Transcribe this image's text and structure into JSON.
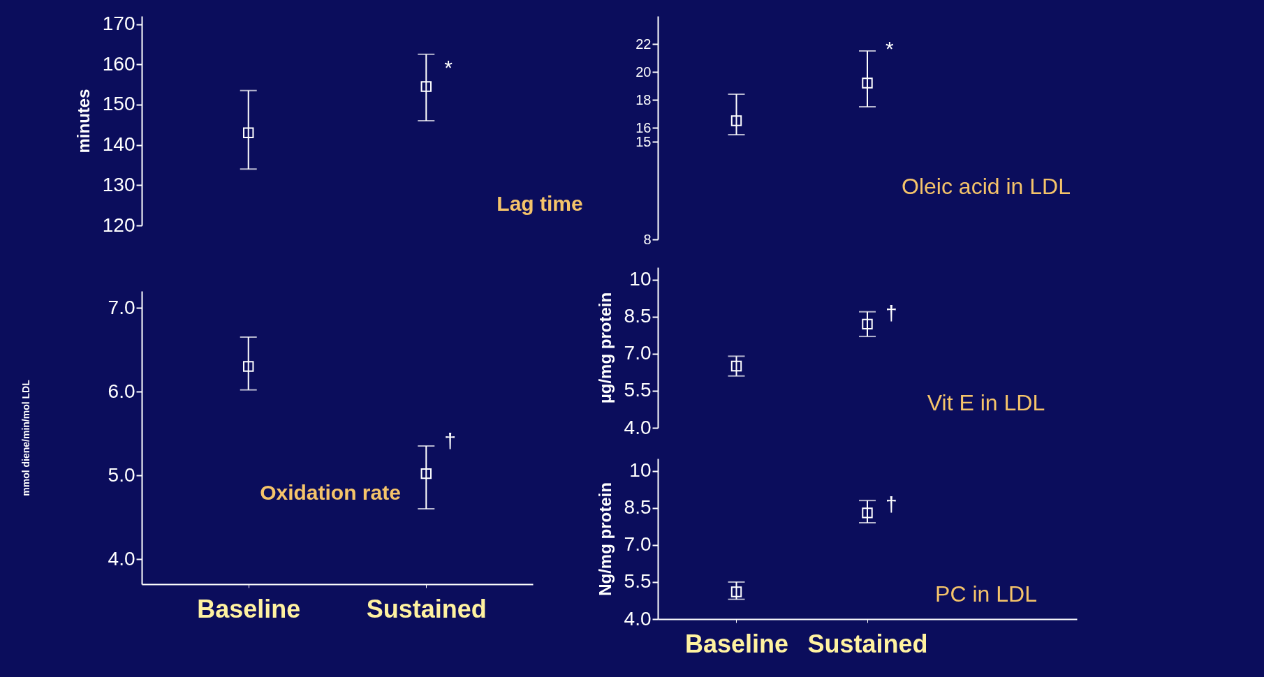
{
  "chart_data": [
    {
      "type": "scatter",
      "title": "Lag time",
      "ylabel": "minutes",
      "categories": [
        "Baseline",
        "Sustained"
      ],
      "values": [
        143,
        154.5
      ],
      "errors": [
        [
          134,
          153.5
        ],
        [
          146,
          162.5
        ]
      ],
      "color": "#ffffff",
      "marker": "square",
      "ylim": [
        120,
        172
      ],
      "yticks": [
        120,
        130,
        140,
        150,
        160,
        170
      ],
      "tick_labels": "y",
      "annotations": [
        {
          "text": "*",
          "x": "Sustained",
          "y": 159
        }
      ]
    },
    {
      "type": "scatter",
      "title": "Oxidation rate",
      "ylabel": "mmol diene/min/mol LDL",
      "categories": [
        "Baseline",
        "Sustained"
      ],
      "values": [
        6.3,
        5.02
      ],
      "errors": [
        [
          6.02,
          6.65
        ],
        [
          4.6,
          5.35
        ]
      ],
      "color": "#ffffff",
      "marker": "square",
      "ylim": [
        3.7,
        7.2
      ],
      "yticks": [
        {
          "value": 4,
          "label": "4.0"
        },
        {
          "value": 5,
          "label": "5.0"
        },
        {
          "value": 6,
          "label": "6.0"
        },
        {
          "value": 7,
          "label": "7.0"
        }
      ],
      "annotations": [
        {
          "text": "†",
          "x": "Sustained",
          "y": 5.4
        }
      ]
    },
    {
      "type": "scatter",
      "title": "Oleic acid in LDL",
      "categories": [
        "Baseline",
        "Sustained"
      ],
      "values": [
        16.5,
        19.2
      ],
      "errors": [
        [
          15.5,
          18.4
        ],
        [
          17.5,
          21.5
        ]
      ],
      "color": "#ffffff",
      "marker": "square",
      "ylim": [
        8,
        24
      ],
      "yticks": [
        8,
        15,
        16,
        18,
        20,
        22
      ],
      "tick_labels": "y",
      "annotations": [
        {
          "text": "*",
          "x": "Sustained",
          "y": 21.6
        }
      ]
    },
    {
      "type": "scatter",
      "title": "Vit E in LDL",
      "ylabel": "µg/mg protein",
      "categories": [
        "Baseline",
        "Sustained"
      ],
      "values": [
        6.5,
        8.2
      ],
      "errors": [
        [
          6.1,
          6.9
        ],
        [
          7.7,
          8.7
        ]
      ],
      "color": "#ffffff",
      "marker": "square",
      "ylim": [
        4,
        10.5
      ],
      "yticks": [
        {
          "value": 4,
          "label": "4.0"
        },
        5.5,
        {
          "value": 7,
          "label": "7.0"
        },
        8.5,
        10
      ],
      "tick_labels": "y",
      "annotations": [
        {
          "text": "†",
          "x": "Sustained",
          "y": 8.6
        }
      ]
    },
    {
      "type": "scatter",
      "title": "PC in LDL",
      "ylabel": "Ng/mg protein",
      "categories": [
        "Baseline",
        "Sustained"
      ],
      "values": [
        5.1,
        8.3
      ],
      "errors": [
        [
          4.8,
          5.5
        ],
        [
          7.9,
          8.8
        ]
      ],
      "color": "#ffffff",
      "marker": "square",
      "ylim": [
        4,
        10.5
      ],
      "yticks": [
        {
          "value": 4,
          "label": "4.0"
        },
        5.5,
        {
          "value": 7,
          "label": "7.0"
        },
        8.5,
        10
      ],
      "annotations": [
        {
          "text": "†",
          "x": "Sustained",
          "y": 8.6
        }
      ]
    }
  ]
}
